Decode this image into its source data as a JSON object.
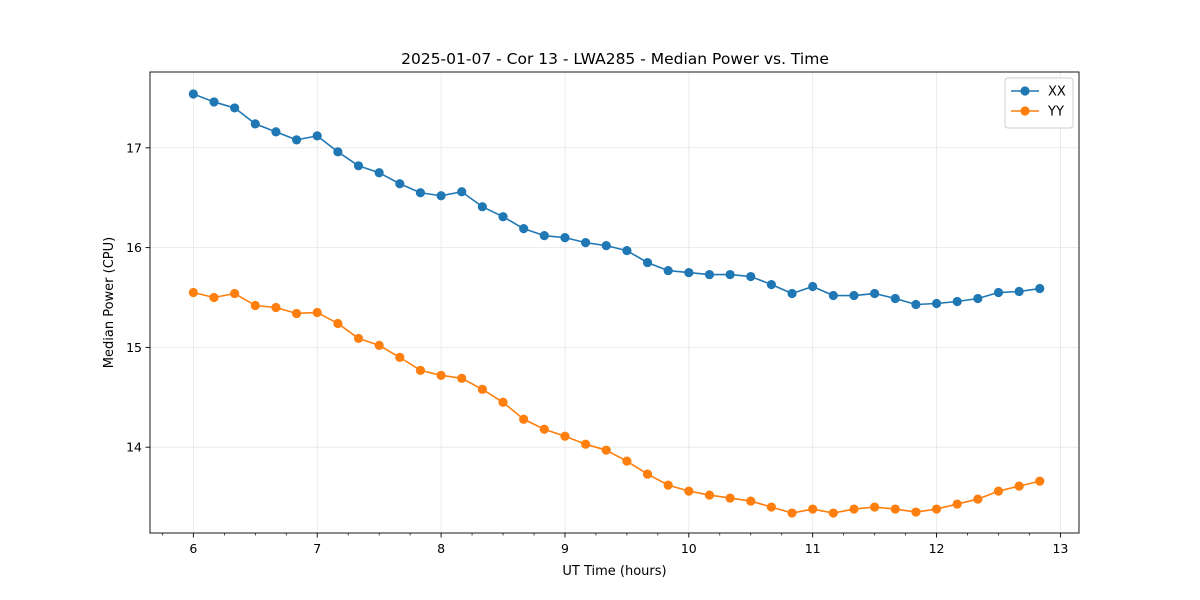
{
  "chart_data": {
    "type": "line",
    "title": "2025-01-07 - Cor 13 - LWA285 - Median Power vs. Time",
    "xlabel": "UT Time (hours)",
    "ylabel": "Median Power (CPU)",
    "xlim": [
      5.65,
      13.15
    ],
    "ylim": [
      13.14,
      17.76
    ],
    "xticks": [
      6,
      7,
      8,
      9,
      10,
      11,
      12,
      13
    ],
    "yticks": [
      14,
      15,
      16,
      17
    ],
    "grid": true,
    "legend_position": "top-right",
    "x": [
      6.0,
      6.1667,
      6.3333,
      6.5,
      6.6667,
      6.8333,
      7.0,
      7.1667,
      7.3333,
      7.5,
      7.6667,
      7.8333,
      8.0,
      8.1667,
      8.3333,
      8.5,
      8.6667,
      8.8333,
      9.0,
      9.1667,
      9.3333,
      9.5,
      9.6667,
      9.8333,
      10.0,
      10.1667,
      10.3333,
      10.5,
      10.6667,
      10.8333,
      11.0,
      11.1667,
      11.3333,
      11.5,
      11.6667,
      11.8333,
      12.0,
      12.1667,
      12.3333,
      12.5,
      12.6667,
      12.8333
    ],
    "series": [
      {
        "name": "XX",
        "color": "#1f77b4",
        "values": [
          17.54,
          17.46,
          17.4,
          17.24,
          17.16,
          17.08,
          17.12,
          16.96,
          16.82,
          16.75,
          16.64,
          16.55,
          16.52,
          16.56,
          16.41,
          16.31,
          16.19,
          16.12,
          16.1,
          16.05,
          16.02,
          15.97,
          15.85,
          15.77,
          15.75,
          15.73,
          15.73,
          15.71,
          15.63,
          15.54,
          15.61,
          15.52,
          15.52,
          15.54,
          15.49,
          15.43,
          15.44,
          15.46,
          15.49,
          15.55,
          15.56,
          15.59
        ]
      },
      {
        "name": "YY",
        "color": "#ff7f0e",
        "values": [
          15.55,
          15.5,
          15.54,
          15.42,
          15.4,
          15.34,
          15.35,
          15.24,
          15.09,
          15.02,
          14.9,
          14.77,
          14.72,
          14.69,
          14.58,
          14.45,
          14.28,
          14.18,
          14.11,
          14.03,
          13.97,
          13.86,
          13.73,
          13.62,
          13.56,
          13.52,
          13.49,
          13.46,
          13.4,
          13.34,
          13.38,
          13.34,
          13.38,
          13.4,
          13.38,
          13.35,
          13.38,
          13.43,
          13.48,
          13.56,
          13.61,
          13.66
        ]
      }
    ]
  }
}
